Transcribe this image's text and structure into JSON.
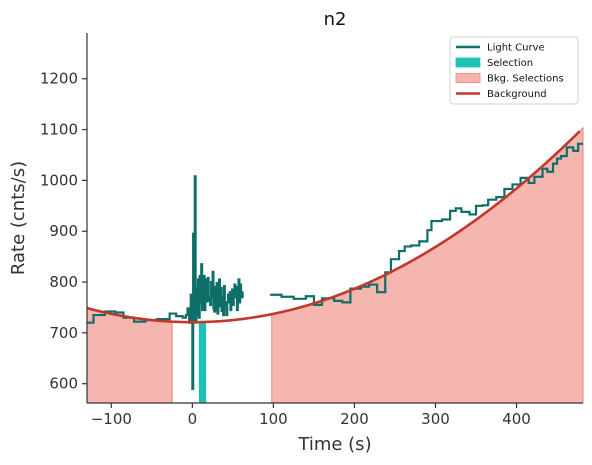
{
  "chart_data": {
    "type": "line",
    "title": "n2",
    "xlabel": "Time (s)",
    "ylabel": "Rate (cnts/s)",
    "xlim": [
      -130,
      482
    ],
    "ylim": [
      562,
      1290
    ],
    "xticks": [
      -100,
      0,
      100,
      200,
      300,
      400
    ],
    "yticks": [
      600,
      700,
      800,
      900,
      1000,
      1100,
      1200
    ],
    "xtick_labels": [
      "−100",
      "0",
      "100",
      "200",
      "300",
      "400"
    ],
    "ytick_labels": [
      "600",
      "700",
      "800",
      "900",
      "1000",
      "1100",
      "1200"
    ],
    "grid": false,
    "legend_position": "top-right",
    "legend": [
      {
        "label": "Light Curve",
        "kind": "line",
        "color": "#0e6e68"
      },
      {
        "label": "Selection",
        "kind": "patch",
        "color": "#1cc3b3"
      },
      {
        "label": "Bkg. Selections",
        "kind": "patch",
        "color": "#f4b6af"
      },
      {
        "label": "Background",
        "kind": "line",
        "color": "#c0392b"
      }
    ],
    "colors": {
      "light_curve": "#0e6e68",
      "selection": "#1cc3b3",
      "bkg_fill": "#f4b6af",
      "bkg_edge": "#e8827a",
      "background": "#c0392b"
    },
    "selection_range": [
      8,
      17
    ],
    "bkg_selections": [
      [
        -130,
        -25
      ],
      [
        98,
        482
      ]
    ],
    "background_fit": {
      "model": "quadratic",
      "a": 0.001645,
      "vertex_x": 0,
      "vertex_y": 721
    },
    "light_curve_coarse": {
      "left": [
        [
          -130,
          720
        ],
        [
          -122,
          735
        ],
        [
          -108,
          742
        ],
        [
          -95,
          740
        ],
        [
          -85,
          730
        ],
        [
          -72,
          722
        ],
        [
          -58,
          725
        ],
        [
          -44,
          727
        ],
        [
          -28,
          738
        ],
        [
          -20,
          733
        ],
        [
          -12,
          730
        ]
      ],
      "right": [
        [
          96,
          775
        ],
        [
          110,
          771
        ],
        [
          125,
          767
        ],
        [
          140,
          772
        ],
        [
          150,
          755
        ],
        [
          160,
          768
        ],
        [
          175,
          763
        ],
        [
          185,
          760
        ],
        [
          195,
          787
        ],
        [
          208,
          791
        ],
        [
          218,
          795
        ],
        [
          228,
          780
        ],
        [
          238,
          819
        ],
        [
          245,
          845
        ],
        [
          255,
          861
        ],
        [
          262,
          870
        ],
        [
          270,
          872
        ],
        [
          280,
          880
        ],
        [
          290,
          902
        ],
        [
          295,
          920
        ],
        [
          308,
          923
        ],
        [
          318,
          940
        ],
        [
          325,
          945
        ],
        [
          332,
          938
        ],
        [
          342,
          933
        ],
        [
          350,
          950
        ],
        [
          358,
          951
        ],
        [
          365,
          962
        ],
        [
          375,
          967
        ],
        [
          385,
          983
        ],
        [
          395,
          992
        ],
        [
          405,
          1005
        ],
        [
          415,
          995
        ],
        [
          422,
          1007
        ],
        [
          432,
          1023
        ],
        [
          438,
          1017
        ],
        [
          445,
          1033
        ],
        [
          450,
          1043
        ],
        [
          455,
          1048
        ],
        [
          462,
          1065
        ],
        [
          470,
          1058
        ],
        [
          476,
          1072
        ],
        [
          482,
          1072
        ]
      ]
    },
    "light_curve_fine": [
      [
        -8,
        735
      ],
      [
        -6,
        748
      ],
      [
        -4,
        720
      ],
      [
        -2,
        775
      ],
      [
        0,
        590
      ],
      [
        1,
        895
      ],
      [
        2,
        722
      ],
      [
        3,
        1008
      ],
      [
        4,
        720
      ],
      [
        5,
        788
      ],
      [
        6,
        735
      ],
      [
        7,
        805
      ],
      [
        8,
        730
      ],
      [
        9,
        812
      ],
      [
        10,
        760
      ],
      [
        11,
        835
      ],
      [
        12,
        745
      ],
      [
        13,
        780
      ],
      [
        14,
        812
      ],
      [
        15,
        745
      ],
      [
        16,
        770
      ],
      [
        17,
        805
      ],
      [
        18,
        762
      ],
      [
        19,
        808
      ],
      [
        20,
        765
      ],
      [
        21,
        770
      ],
      [
        22,
        755
      ],
      [
        23,
        800
      ],
      [
        24,
        770
      ],
      [
        25,
        820
      ],
      [
        26,
        748
      ],
      [
        27,
        742
      ],
      [
        28,
        790
      ],
      [
        29,
        745
      ],
      [
        30,
        798
      ],
      [
        31,
        738
      ],
      [
        32,
        772
      ],
      [
        33,
        805
      ],
      [
        34,
        752
      ],
      [
        35,
        788
      ],
      [
        36,
        743
      ],
      [
        37,
        770
      ],
      [
        38,
        735
      ],
      [
        39,
        792
      ],
      [
        40,
        760
      ],
      [
        41,
        748
      ],
      [
        42,
        735
      ],
      [
        43,
        760
      ],
      [
        44,
        775
      ],
      [
        45,
        760
      ],
      [
        46,
        780
      ],
      [
        47,
        745
      ],
      [
        48,
        765
      ],
      [
        49,
        785
      ],
      [
        50,
        755
      ],
      [
        51,
        780
      ],
      [
        52,
        795
      ],
      [
        53,
        770
      ],
      [
        54,
        790
      ],
      [
        55,
        745
      ],
      [
        56,
        790
      ],
      [
        57,
        805
      ],
      [
        58,
        760
      ],
      [
        59,
        795
      ],
      [
        60,
        775
      ],
      [
        61,
        770
      ],
      [
        62,
        780
      ]
    ]
  }
}
